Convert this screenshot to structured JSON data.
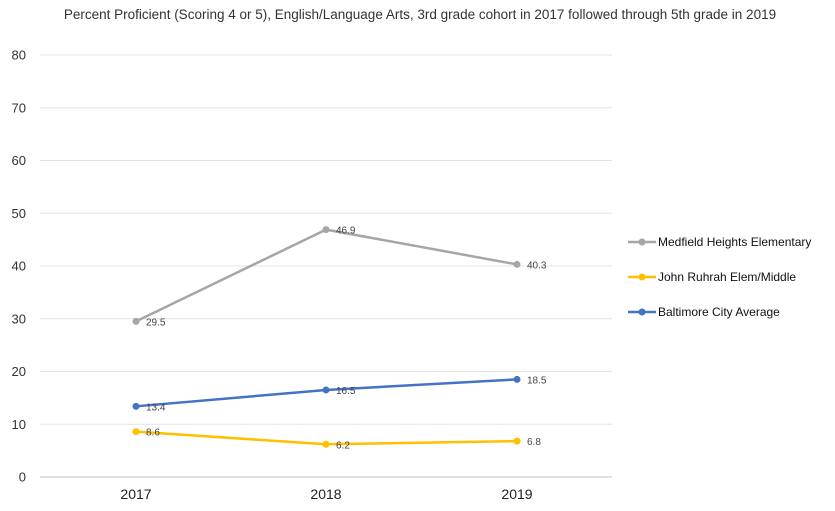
{
  "chart_data": {
    "type": "line",
    "title": "Percent Proficient (Scoring 4 or 5), English/Language Arts, 3rd grade cohort in 2017 followed through 5th grade in 2019",
    "xlabel": "",
    "ylabel": "",
    "categories": [
      "2017",
      "2018",
      "2019"
    ],
    "ylim": [
      0,
      80
    ],
    "yticks": [
      0,
      10,
      20,
      30,
      40,
      50,
      60,
      70,
      80
    ],
    "grid": true,
    "legend": "right",
    "series": [
      {
        "name": "Medfield Heights Elementary",
        "values": [
          29.5,
          46.9,
          40.3
        ],
        "labels": [
          "29.5",
          "46.9",
          "40.3"
        ],
        "color": "#a6a6a6"
      },
      {
        "name": "John Ruhrah Elem/Middle",
        "values": [
          8.6,
          6.2,
          6.8
        ],
        "labels": [
          "8.6",
          "6.2",
          "6.8"
        ],
        "color": "#ffc000"
      },
      {
        "name": "Baltimore City Average",
        "values": [
          13.4,
          16.5,
          18.5
        ],
        "labels": [
          "13.4",
          "16.5",
          "18.5"
        ],
        "color": "#4472c4"
      }
    ]
  }
}
